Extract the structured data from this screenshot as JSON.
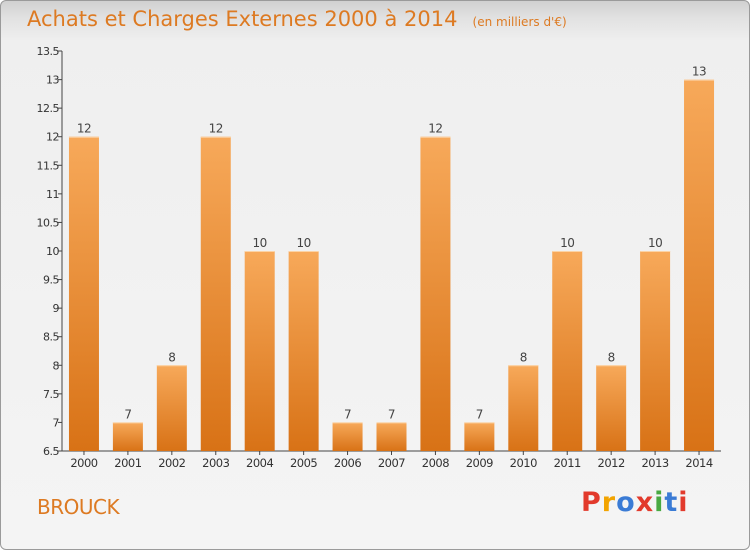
{
  "header": {
    "title": "Achats et Charges Externes 2000 à 2014",
    "unit": "(en milliers d'€)"
  },
  "footer": {
    "city": "BROUCK",
    "logo_text": "Proxiti"
  },
  "colors": {
    "bar_light": "#f7a95a",
    "bar_dark": "#d87216",
    "title": "#dd7a22",
    "logo_letters": [
      "#e23a2c",
      "#f2a400",
      "#3a7bd5",
      "#e23a2c",
      "#49a942",
      "#3a7bd5",
      "#e23a2c"
    ]
  },
  "chart_data": {
    "type": "bar",
    "categories": [
      "2000",
      "2001",
      "2002",
      "2003",
      "2004",
      "2005",
      "2006",
      "2007",
      "2008",
      "2009",
      "2010",
      "2011",
      "2012",
      "2013",
      "2014"
    ],
    "values": [
      12,
      7,
      8,
      12,
      10,
      10,
      7,
      7,
      12,
      7,
      8,
      10,
      8,
      10,
      13
    ],
    "title": "Achats et Charges Externes 2000 à 2014",
    "xlabel": "",
    "ylabel": "",
    "ylim": [
      6.5,
      13.5
    ],
    "yticks": [
      "6.5",
      "7",
      "7.5",
      "8",
      "8.5",
      "9",
      "9.5",
      "10",
      "10.5",
      "11",
      "11.5",
      "12",
      "12.5",
      "13",
      "13.5"
    ],
    "grid": false,
    "legend": "none"
  }
}
